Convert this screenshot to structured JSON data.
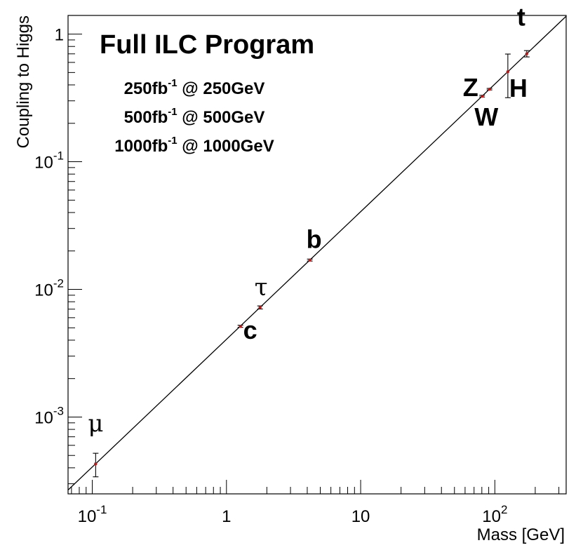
{
  "chart_data": {
    "type": "scatter",
    "title": "Full ILC Program",
    "annotations": [
      {
        "base": "250fb",
        "sup": "-1",
        "rest": " @ 250GeV"
      },
      {
        "base": "500fb",
        "sup": "-1",
        "rest": " @ 500GeV"
      },
      {
        "base": "1000fb",
        "sup": "-1",
        "rest": " @ 1000GeV"
      }
    ],
    "xlabel": "Mass [GeV]",
    "ylabel": "Coupling to Higgs",
    "xscale": "log",
    "yscale": "log",
    "xlim": [
      0.066,
      340
    ],
    "ylim": [
      0.00025,
      1.4
    ],
    "x_major_ticks": [
      {
        "value": 0.1,
        "base": "10",
        "exp": "-1"
      },
      {
        "value": 1,
        "base": "1",
        "exp": ""
      },
      {
        "value": 10,
        "base": "10",
        "exp": ""
      },
      {
        "value": 100,
        "base": "10",
        "exp": "2"
      }
    ],
    "y_major_ticks": [
      {
        "value": 0.001,
        "base": "10",
        "exp": "-3"
      },
      {
        "value": 0.01,
        "base": "10",
        "exp": "-2"
      },
      {
        "value": 0.1,
        "base": "10",
        "exp": "-1"
      },
      {
        "value": 1,
        "base": "1",
        "exp": ""
      }
    ],
    "reference_line": {
      "description": "coupling = mass / v",
      "slope": 0.00406
    },
    "points": [
      {
        "label": "μ",
        "greek": true,
        "mass": 0.106,
        "coupling": 0.00043,
        "err_low": 9e-05,
        "err_high": 9e-05
      },
      {
        "label": "c",
        "greek": false,
        "mass": 1.27,
        "coupling": 0.00514,
        "err_low": 0.0001,
        "err_high": 0.0001
      },
      {
        "label": "τ",
        "greek": true,
        "mass": 1.78,
        "coupling": 0.00722,
        "err_low": 0.0002,
        "err_high": 0.0002
      },
      {
        "label": "b",
        "greek": false,
        "mass": 4.18,
        "coupling": 0.01697,
        "err_low": 0.0003,
        "err_high": 0.0003
      },
      {
        "label": "W",
        "greek": false,
        "mass": 80.4,
        "coupling": 0.3264,
        "err_low": 0.005,
        "err_high": 0.005
      },
      {
        "label": "Z",
        "greek": false,
        "mass": 91.2,
        "coupling": 0.3702,
        "err_low": 0.005,
        "err_high": 0.005
      },
      {
        "label": "H",
        "greek": false,
        "mass": 125,
        "coupling": 0.5075,
        "err_low": 0.19,
        "err_high": 0.19
      },
      {
        "label": "t",
        "greek": false,
        "mass": 173,
        "coupling": 0.7024,
        "err_low": 0.04,
        "err_high": 0.04
      }
    ],
    "colors": {
      "marker": "#b81a1a",
      "line": "#000000",
      "axis": "#000000"
    }
  }
}
